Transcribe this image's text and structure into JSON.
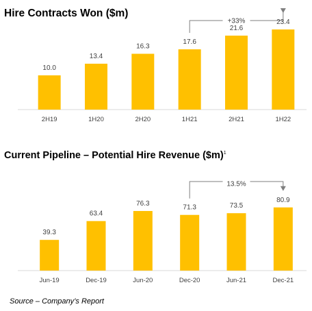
{
  "colors": {
    "bar": "#FFC000",
    "axis": "#D9D9D9",
    "bracket": "#7F7F7F",
    "text": "#404040"
  },
  "source": "Source – Company’s Report",
  "chart_data": [
    {
      "type": "bar",
      "title": "Hire Contracts Won ($m)",
      "categories": [
        "2H19",
        "1H20",
        "2H20",
        "1H21",
        "2H21",
        "1H22"
      ],
      "values": [
        10.0,
        13.4,
        16.3,
        17.6,
        21.6,
        23.4
      ],
      "value_labels": [
        "10.0",
        "13.4",
        "16.3",
        "17.6",
        "21.6",
        "23.4"
      ],
      "ylim": [
        0,
        25
      ],
      "grid": false,
      "annotation": {
        "text": "+33%",
        "from_index": 3,
        "to_index": 5
      }
    },
    {
      "type": "bar",
      "title": "Current Pipeline – Potential Hire Revenue ($m)",
      "title_superscript": "1",
      "categories": [
        "Jun-19",
        "Dec-19",
        "Jun-20",
        "Dec-20",
        "Jun-21",
        "Dec-21"
      ],
      "values": [
        39.3,
        63.4,
        76.3,
        71.3,
        73.5,
        80.9
      ],
      "value_labels": [
        "39.3",
        "63.4",
        "76.3",
        "71.3",
        "73.5",
        "80.9"
      ],
      "ylim": [
        0,
        90
      ],
      "grid": false,
      "annotation": {
        "text": "13.5%",
        "from_index": 3,
        "to_index": 5
      }
    }
  ]
}
